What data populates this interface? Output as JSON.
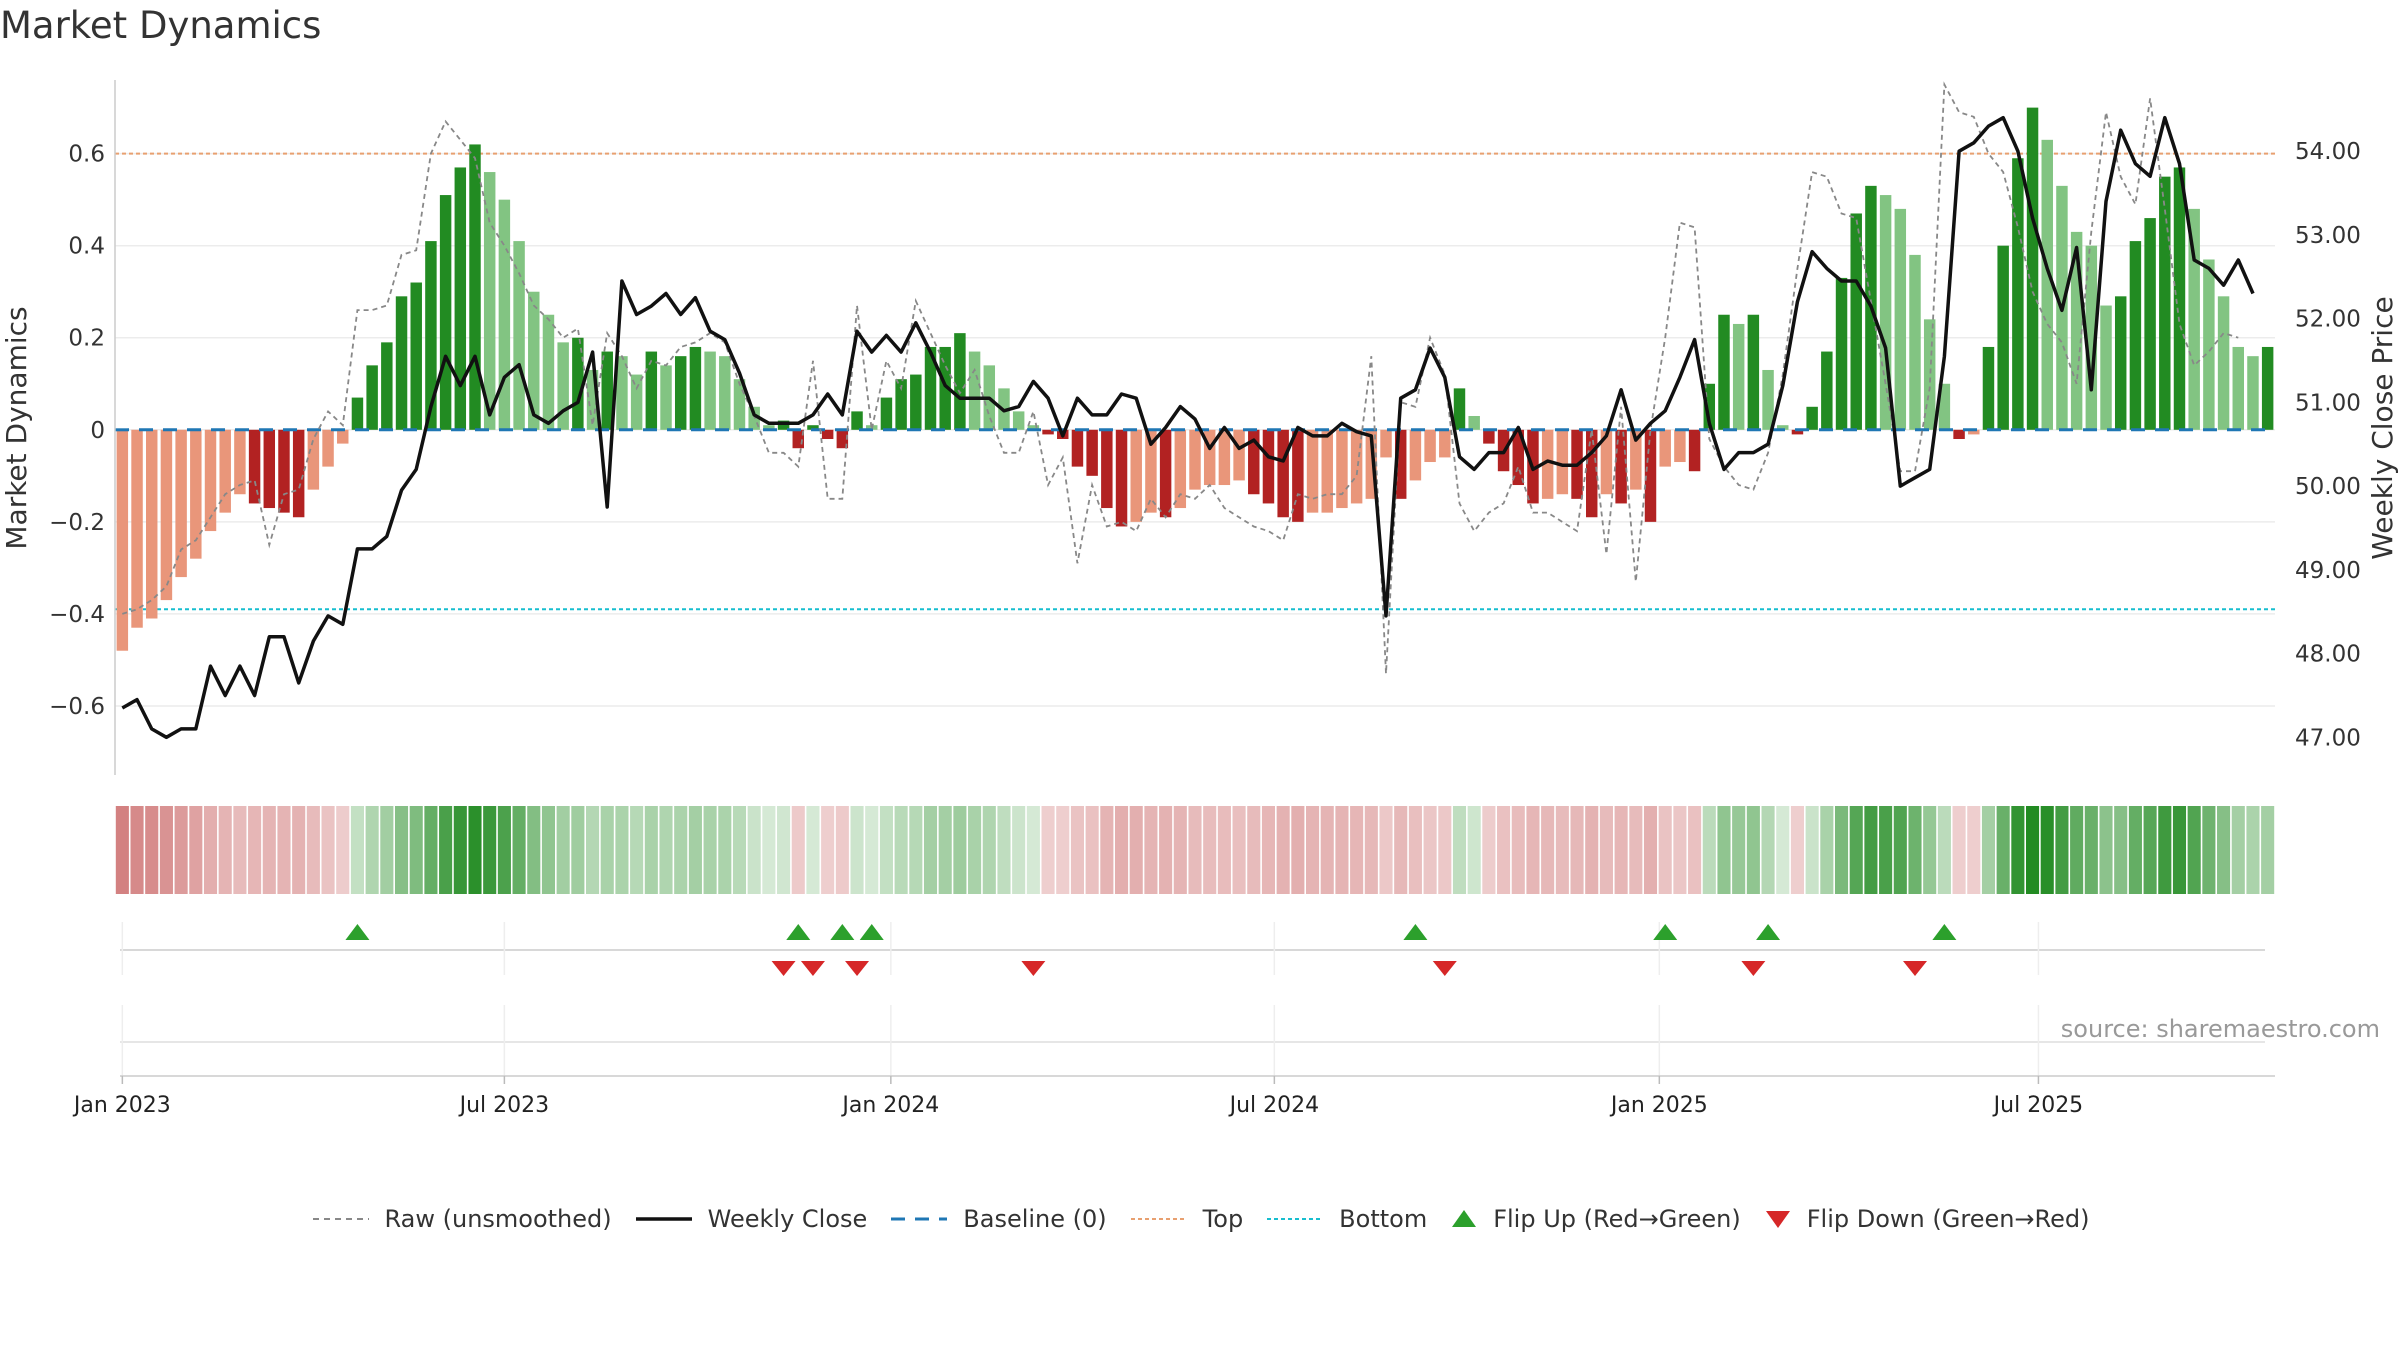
{
  "title": "Market Dynamics",
  "source": "source: sharemaestro.com",
  "colors": {
    "dark_green": "#228B22",
    "light_green": "#82C482",
    "dark_red": "#B22222",
    "light_red": "#E9967A",
    "raw": "#888888",
    "close": "#111111",
    "baseline": "#1f77b4",
    "top": "#E8A070",
    "bottom": "#17BECF",
    "flip_up": "#2ca02c",
    "flip_down": "#d62728"
  },
  "legend": {
    "raw": "Raw (unsmoothed)",
    "close": "Weekly Close",
    "baseline": "Baseline (0)",
    "top": "Top",
    "bottom": "Bottom",
    "flip_up": "Flip Up (Red→Green)",
    "flip_down": "Flip Down (Green→Red)"
  },
  "chart_data": {
    "type": "bar",
    "title": "Market Dynamics",
    "ylabel": "Market Dynamics",
    "y2label": "Weekly Close Price",
    "ylim": [
      -0.75,
      0.76
    ],
    "y2lim": [
      46.55,
      54.85
    ],
    "yticks": [
      "0.6",
      "0.4",
      "0.2",
      "0",
      "−0.2",
      "−0.4",
      "−0.6"
    ],
    "ytick_values": [
      0.6,
      0.4,
      0.2,
      0,
      -0.2,
      -0.4,
      -0.6
    ],
    "y2ticks": [
      "54.00",
      "53.00",
      "52.00",
      "51.00",
      "50.00",
      "49.00",
      "48.00",
      "47.00"
    ],
    "y2tick_values": [
      54,
      53,
      52,
      51,
      50,
      49,
      48,
      47
    ],
    "xticks": [
      "Jan 2023",
      "Jul 2023",
      "Jan 2024",
      "Jul 2024",
      "Jan 2025",
      "Jul 2025"
    ],
    "xtick_weeks": [
      0,
      26,
      52.3,
      78.4,
      104.6,
      130.4
    ],
    "thresholds": {
      "top": 0.6,
      "bottom": -0.39,
      "baseline": 0
    },
    "grid": true,
    "legend_position": "bottom-center",
    "weeks_start": "2022-12-26",
    "series": [
      {
        "name": "Market Dynamics",
        "values": [
          -0.48,
          -0.43,
          -0.41,
          -0.37,
          -0.32,
          -0.28,
          -0.22,
          -0.18,
          -0.14,
          -0.16,
          -0.17,
          -0.18,
          -0.19,
          -0.13,
          -0.08,
          -0.03,
          0.07,
          0.14,
          0.19,
          0.29,
          0.32,
          0.41,
          0.51,
          0.57,
          0.62,
          0.56,
          0.5,
          0.41,
          0.3,
          0.25,
          0.19,
          0.2,
          0.13,
          0.17,
          0.16,
          0.12,
          0.17,
          0.14,
          0.16,
          0.18,
          0.17,
          0.16,
          0.11,
          0.05,
          0.01,
          0.02,
          -0.04,
          0.01,
          -0.02,
          -0.04,
          0.04,
          0.01,
          0.07,
          0.11,
          0.12,
          0.18,
          0.18,
          0.21,
          0.17,
          0.14,
          0.09,
          0.04,
          0.01,
          -0.01,
          -0.02,
          -0.08,
          -0.1,
          -0.17,
          -0.21,
          -0.2,
          -0.18,
          -0.19,
          -0.17,
          -0.13,
          -0.12,
          -0.12,
          -0.11,
          -0.14,
          -0.16,
          -0.19,
          -0.2,
          -0.18,
          -0.18,
          -0.17,
          -0.16,
          -0.15,
          -0.06,
          -0.15,
          -0.11,
          -0.07,
          -0.06,
          0.09,
          0.03,
          -0.03,
          -0.09,
          -0.12,
          -0.16,
          -0.15,
          -0.14,
          -0.15,
          -0.19,
          -0.14,
          -0.16,
          -0.13,
          -0.2,
          -0.08,
          -0.07,
          -0.09,
          0.1,
          0.25,
          0.23,
          0.25,
          0.13,
          0.01,
          -0.01,
          0.05,
          0.17,
          0.33,
          0.47,
          0.53,
          0.51,
          0.48,
          0.38,
          0.24,
          0.1,
          -0.02,
          -0.01,
          0.18,
          0.4,
          0.59,
          0.7,
          0.63,
          0.53,
          0.43,
          0.4,
          0.27,
          0.29,
          0.41,
          0.46,
          0.55,
          0.57,
          0.48,
          0.37,
          0.29,
          0.18,
          0.16,
          0.18
        ]
      },
      {
        "name": "Weekly Close",
        "values": [
          47.35,
          47.45,
          47.1,
          47,
          47.1,
          47.1,
          47.85,
          47.5,
          47.85,
          47.5,
          48.2,
          48.2,
          47.65,
          48.15,
          48.45,
          48.35,
          49.25,
          49.25,
          49.4,
          49.95,
          50.2,
          50.95,
          51.55,
          51.2,
          51.55,
          50.85,
          51.3,
          51.45,
          50.85,
          50.75,
          50.9,
          51,
          51.6,
          49.75,
          52.45,
          52.05,
          52.15,
          52.3,
          52.05,
          52.25,
          51.85,
          51.75,
          51.35,
          50.85,
          50.75,
          50.75,
          50.75,
          50.85,
          51.1,
          50.85,
          51.85,
          51.6,
          51.8,
          51.6,
          51.95,
          51.6,
          51.2,
          51.05,
          51.05,
          51.05,
          50.9,
          50.95,
          51.25,
          51.05,
          50.6,
          51.05,
          50.85,
          50.85,
          51.1,
          51.05,
          50.5,
          50.7,
          50.95,
          50.8,
          50.45,
          50.7,
          50.45,
          50.55,
          50.35,
          50.3,
          50.7,
          50.6,
          50.6,
          50.75,
          50.65,
          50.6,
          48.45,
          51.05,
          51.15,
          51.65,
          51.3,
          50.35,
          50.2,
          50.4,
          50.4,
          50.7,
          50.2,
          50.3,
          50.25,
          50.25,
          50.4,
          50.6,
          51.15,
          50.55,
          50.75,
          50.9,
          51.3,
          51.75,
          50.75,
          50.2,
          50.4,
          50.4,
          50.5,
          51.2,
          52.2,
          52.8,
          52.6,
          52.45,
          52.45,
          52.15,
          51.65,
          50,
          50.1,
          50.2,
          51.55,
          54,
          54.1,
          54.3,
          54.4,
          54,
          53.2,
          52.6,
          52.1,
          52.85,
          51.15,
          53.4,
          54.25,
          53.85,
          53.7,
          54.4,
          53.85,
          52.7,
          52.6,
          52.4,
          52.7,
          52.3
        ]
      },
      {
        "name": "Raw (unsmoothed)",
        "values": [
          -0.4,
          -0.39,
          -0.37,
          -0.34,
          -0.26,
          -0.24,
          -0.19,
          -0.14,
          -0.12,
          -0.11,
          -0.25,
          -0.14,
          -0.13,
          -0.02,
          0.04,
          0.01,
          0.26,
          0.26,
          0.27,
          0.38,
          0.39,
          0.6,
          0.67,
          0.63,
          0.59,
          0.45,
          0.4,
          0.34,
          0.27,
          0.24,
          0.2,
          0.22,
          0.01,
          0.21,
          0.16,
          0.09,
          0.15,
          0.14,
          0.18,
          0.19,
          0.21,
          0.19,
          0.1,
          0.03,
          -0.05,
          -0.05,
          -0.08,
          0.15,
          -0.15,
          -0.15,
          0.27,
          0.0,
          0.15,
          0.09,
          0.28,
          0.21,
          0.14,
          0.08,
          0.13,
          0.03,
          -0.05,
          -0.05,
          0.04,
          -0.12,
          -0.06,
          -0.29,
          -0.12,
          -0.21,
          -0.2,
          -0.22,
          -0.15,
          -0.19,
          -0.14,
          -0.15,
          -0.12,
          -0.17,
          -0.19,
          -0.21,
          -0.22,
          -0.24,
          -0.14,
          -0.15,
          -0.14,
          -0.14,
          -0.1,
          0.16,
          -0.53,
          0.06,
          0.05,
          0.2,
          0.12,
          -0.16,
          -0.22,
          -0.18,
          -0.16,
          -0.08,
          -0.18,
          -0.18,
          -0.2,
          -0.22,
          0.0,
          -0.27,
          0.05,
          -0.33,
          0.0,
          0.2,
          0.45,
          0.44,
          -0.02,
          -0.08,
          -0.12,
          -0.13,
          -0.05,
          0.12,
          0.35,
          0.56,
          0.55,
          0.47,
          0.46,
          0.28,
          0.1,
          -0.09,
          -0.09,
          0.09,
          0.75,
          0.69,
          0.68,
          0.6,
          0.56,
          0.44,
          0.3,
          0.23,
          0.19,
          0.1,
          0.43,
          0.69,
          0.55,
          0.49,
          0.72,
          0.48,
          0.23,
          0.14,
          0.17,
          0.21,
          0.2
        ]
      }
    ],
    "flip_up_weeks": [
      16,
      46,
      49,
      51,
      88,
      105,
      112,
      124
    ],
    "flip_down_weeks": [
      45,
      47,
      50,
      62,
      90,
      111,
      122
    ]
  }
}
